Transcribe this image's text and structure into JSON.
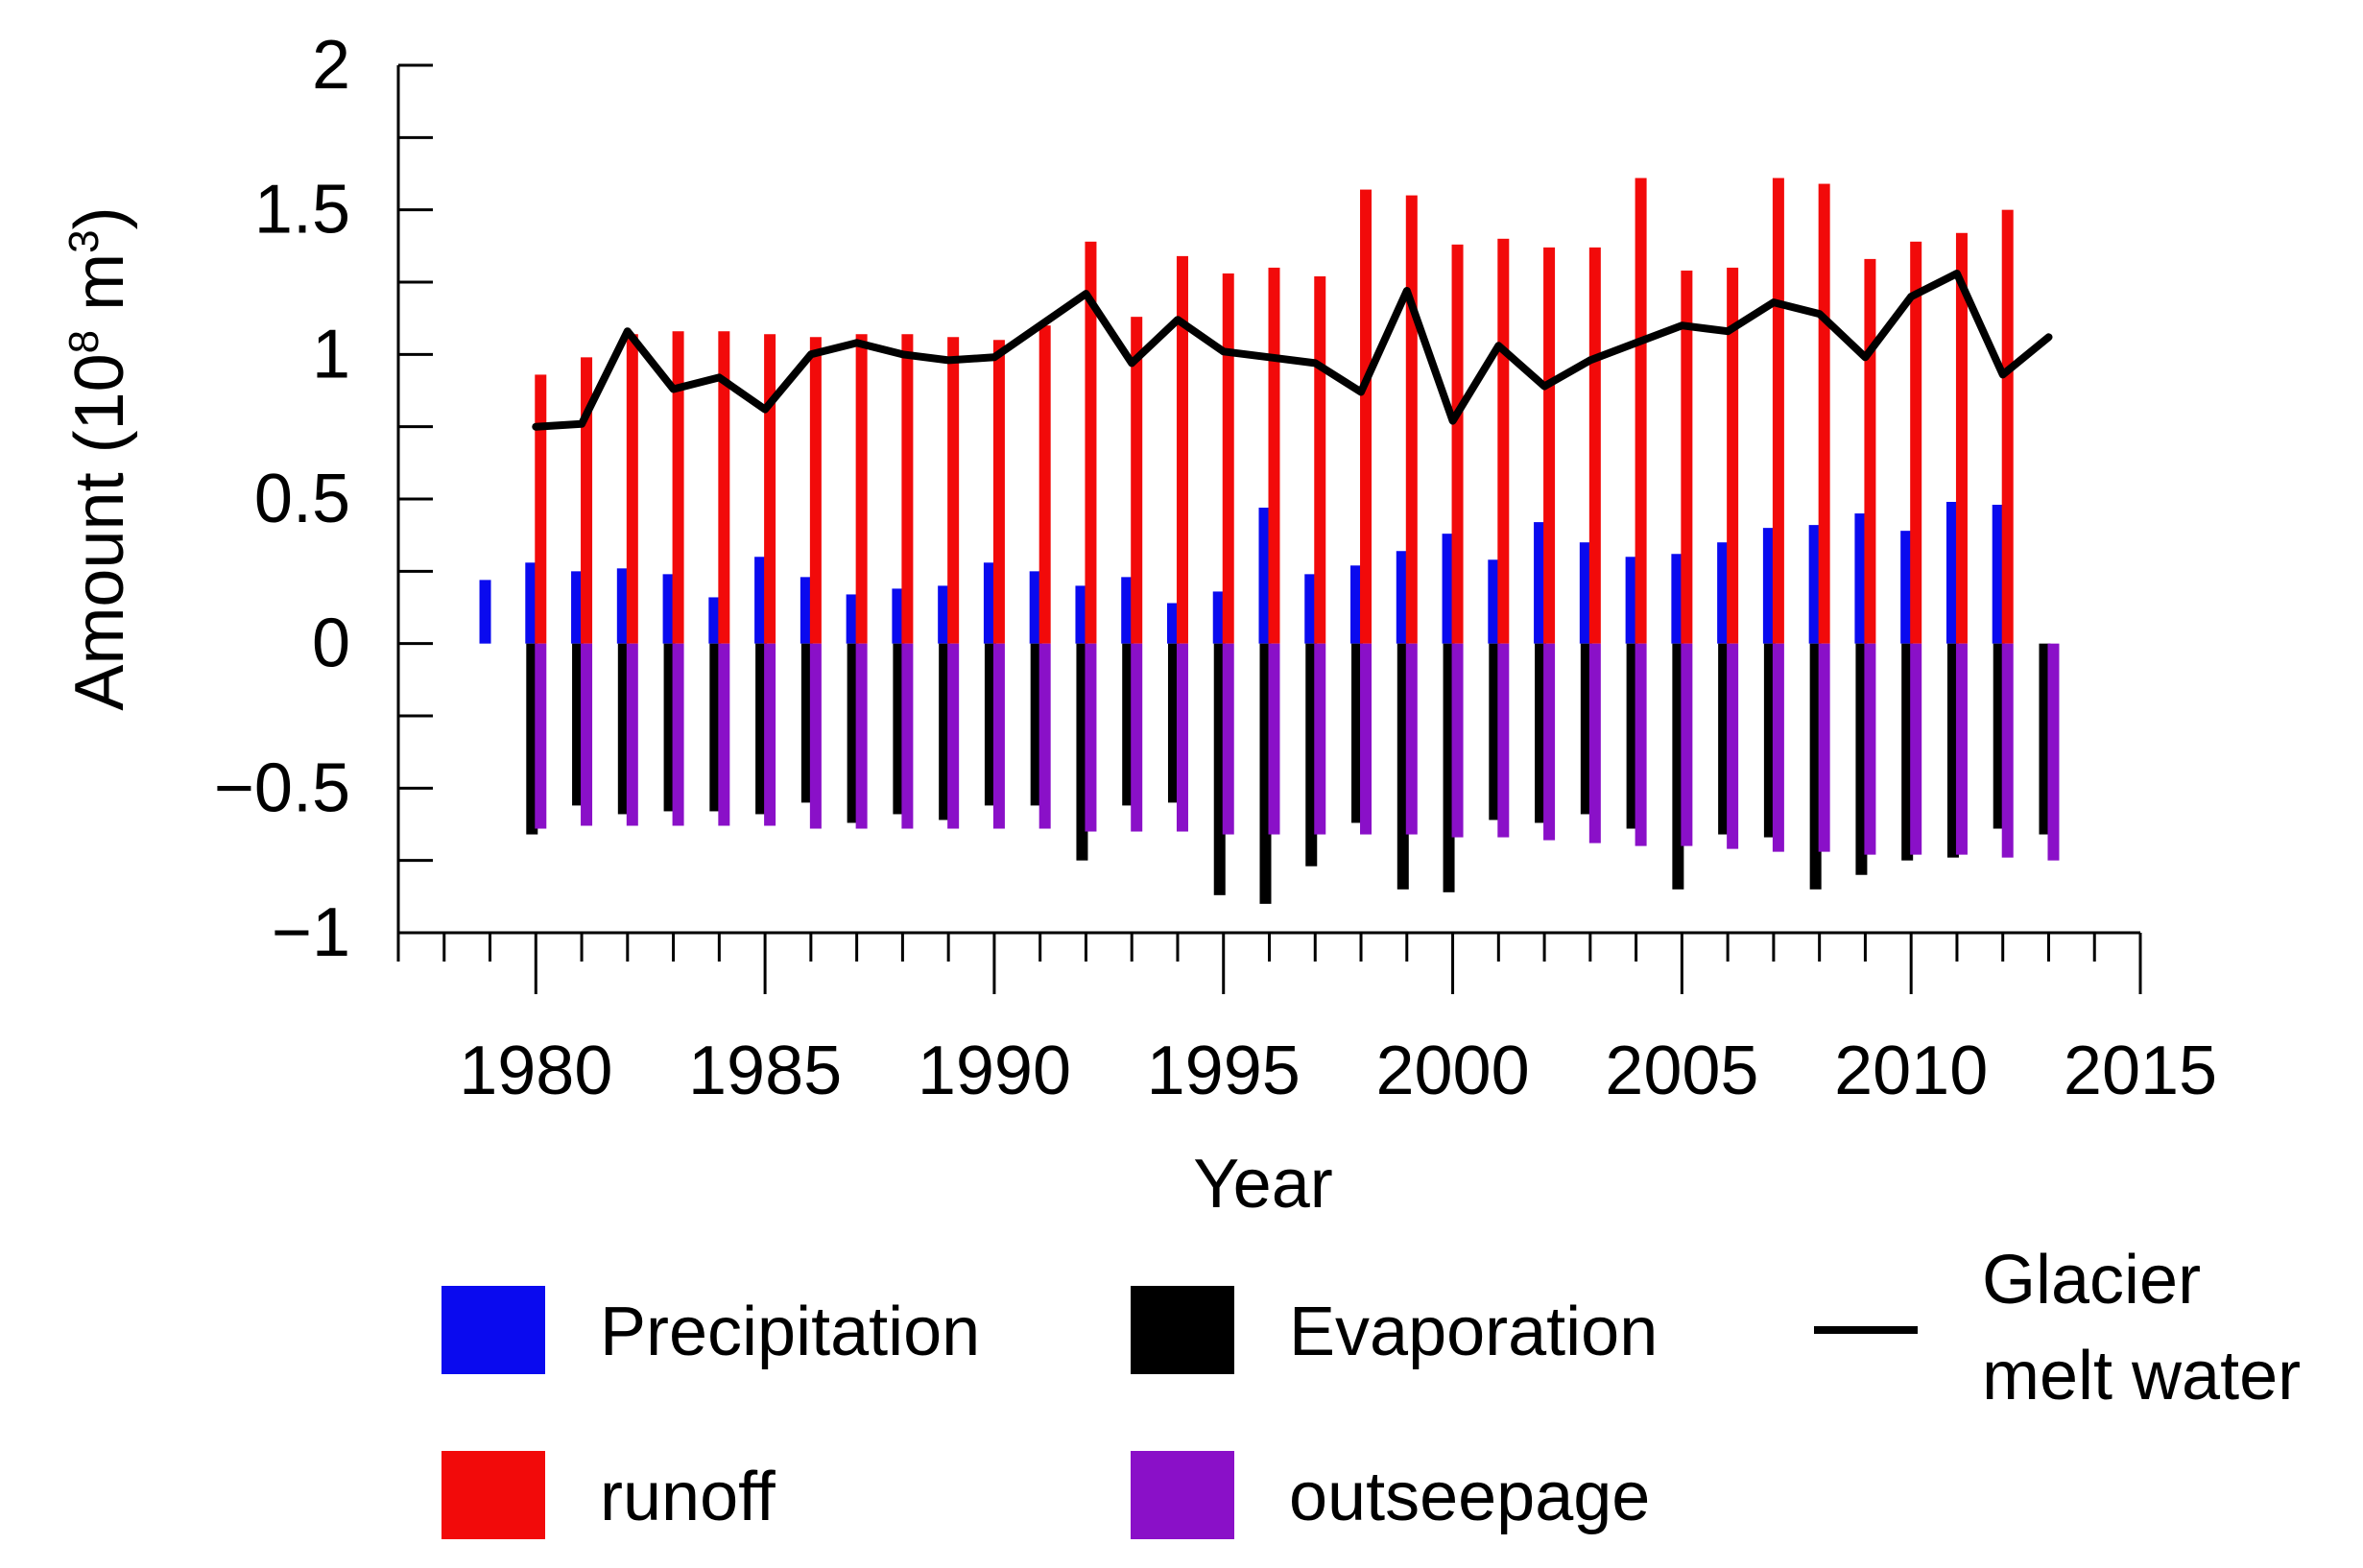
{
  "chart_data": {
    "type": "bar",
    "xlabel": "Year",
    "ylabel_prefix": "Amount (10",
    "ylabel_exp1": "8",
    "ylabel_mid": " m",
    "ylabel_exp2": "3",
    "ylabel_suffix": ")",
    "ylim": [
      -1,
      2
    ],
    "xlim": [
      1977,
      2015
    ],
    "y_ticks": [
      {
        "value": -1,
        "label": "−1"
      },
      {
        "value": -0.5,
        "label": "−0.5"
      },
      {
        "value": 0,
        "label": "0"
      },
      {
        "value": 0.5,
        "label": "0.5"
      },
      {
        "value": 1,
        "label": "1"
      },
      {
        "value": 1.5,
        "label": "1.5"
      },
      {
        "value": 2,
        "label": "2"
      }
    ],
    "x_ticks": [
      {
        "value": 1980,
        "label": "1980"
      },
      {
        "value": 1985,
        "label": "1985"
      },
      {
        "value": 1990,
        "label": "1990"
      },
      {
        "value": 1995,
        "label": "1995"
      },
      {
        "value": 2000,
        "label": "2000"
      },
      {
        "value": 2005,
        "label": "2005"
      },
      {
        "value": 2010,
        "label": "2010"
      },
      {
        "value": 2015,
        "label": "2015"
      }
    ],
    "years": [
      1979,
      1980,
      1981,
      1982,
      1983,
      1984,
      1985,
      1986,
      1987,
      1988,
      1989,
      1990,
      1991,
      1992,
      1993,
      1994,
      1995,
      1996,
      1997,
      1998,
      1999,
      2000,
      2001,
      2002,
      2003,
      2004,
      2005,
      2006,
      2007,
      2008,
      2009,
      2010,
      2011,
      2012,
      2013
    ],
    "series": [
      {
        "name": "Precipitation",
        "color": "#0a0aef",
        "values": [
          0.22,
          0.28,
          0.25,
          0.26,
          0.24,
          0.16,
          0.3,
          0.23,
          0.17,
          0.19,
          0.2,
          0.28,
          0.25,
          0.2,
          0.23,
          0.14,
          0.18,
          0.47,
          0.24,
          0.27,
          0.32,
          0.38,
          0.29,
          0.42,
          0.35,
          0.3,
          0.31,
          0.35,
          0.4,
          0.41,
          0.45,
          0.39,
          0.49,
          0.48,
          null
        ]
      },
      {
        "name": "runoff",
        "color": "#f20a0a",
        "values": [
          null,
          0.93,
          0.99,
          1.07,
          1.08,
          1.08,
          1.07,
          1.06,
          1.07,
          1.07,
          1.06,
          1.05,
          1.1,
          1.39,
          1.13,
          1.34,
          1.28,
          1.3,
          1.27,
          1.57,
          1.55,
          1.38,
          1.4,
          1.37,
          1.37,
          1.61,
          1.29,
          1.3,
          1.61,
          1.59,
          1.33,
          1.39,
          1.42,
          1.5,
          null
        ]
      },
      {
        "name": "Evaporation",
        "color": "#000000",
        "values": [
          null,
          -0.66,
          -0.56,
          -0.59,
          -0.58,
          -0.58,
          -0.59,
          -0.55,
          -0.62,
          -0.59,
          -0.61,
          -0.56,
          -0.56,
          -0.75,
          -0.56,
          -0.55,
          -0.87,
          -0.9,
          -0.77,
          -0.62,
          -0.85,
          -0.86,
          -0.61,
          -0.62,
          -0.59,
          -0.64,
          -0.85,
          -0.66,
          -0.67,
          -0.85,
          -0.8,
          -0.75,
          -0.74,
          -0.64,
          -0.66
        ]
      },
      {
        "name": "outseepage",
        "color": "#8a10c8",
        "values": [
          null,
          -0.64,
          -0.63,
          -0.63,
          -0.63,
          -0.63,
          -0.63,
          -0.64,
          -0.64,
          -0.64,
          -0.64,
          -0.64,
          -0.64,
          -0.65,
          -0.65,
          -0.65,
          -0.66,
          -0.66,
          -0.66,
          -0.66,
          -0.66,
          -0.67,
          -0.67,
          -0.68,
          -0.69,
          -0.7,
          -0.7,
          -0.71,
          -0.72,
          -0.72,
          -0.73,
          -0.73,
          -0.73,
          -0.74,
          -0.75
        ]
      },
      {
        "name": "Glacier melt water",
        "type": "line",
        "color": "#000000",
        "values": [
          null,
          0.75,
          0.76,
          1.08,
          0.88,
          0.92,
          0.81,
          1.0,
          1.04,
          1.0,
          0.98,
          0.99,
          1.1,
          1.21,
          0.97,
          1.12,
          1.01,
          0.99,
          0.97,
          0.87,
          1.22,
          0.77,
          1.03,
          0.89,
          0.98,
          1.04,
          1.1,
          1.08,
          1.18,
          1.14,
          0.99,
          1.2,
          1.28,
          0.93,
          1.06
        ]
      }
    ],
    "legend": [
      {
        "label": "Precipitation",
        "kind": "box",
        "color": "#0a0aef"
      },
      {
        "label": "Evaporation",
        "kind": "box",
        "color": "#000000"
      },
      {
        "label_line1": "Glacier",
        "label_line2": "melt water",
        "kind": "line",
        "color": "#000000"
      },
      {
        "label": "runoff",
        "kind": "box",
        "color": "#f20a0a"
      },
      {
        "label": "outseepage",
        "kind": "box",
        "color": "#8a10c8"
      }
    ]
  }
}
